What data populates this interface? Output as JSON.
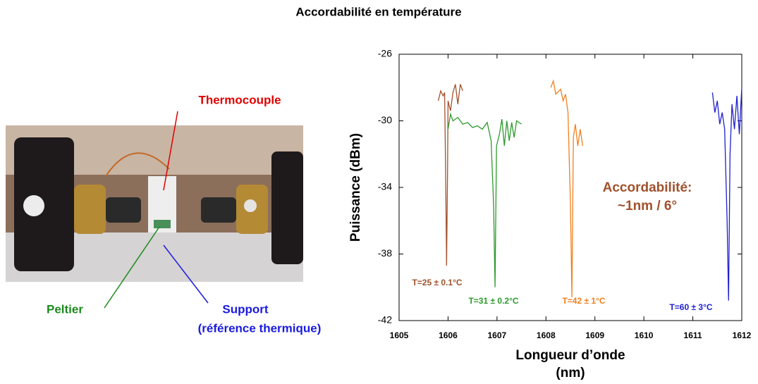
{
  "chart_data": {
    "type": "line",
    "title": "Accordabilité en température",
    "xlabel": [
      "Longueur d’onde",
      "(nm)"
    ],
    "ylabel": "Puissance (dBm)",
    "xlim": [
      1605,
      1612
    ],
    "xticks": [
      1605,
      1606,
      1607,
      1608,
      1609,
      1610,
      1611,
      1612
    ],
    "ylim": [
      -42,
      -26
    ],
    "yticks": [
      -42,
      -38,
      -34,
      -30,
      -26
    ],
    "grid": false,
    "annotation": [
      "Accordabilité:",
      "~1nm / 6°"
    ],
    "annotation_color": "#a0522d",
    "series": [
      {
        "name": "T=25 ± 0.1°C",
        "color": "#a0522d",
        "x": [
          1605.8,
          1605.85,
          1605.9,
          1605.93,
          1605.95,
          1605.97,
          1605.99,
          1606.0,
          1606.05,
          1606.1,
          1606.15,
          1606.2,
          1606.25,
          1606.3
        ],
        "values": [
          -28.8,
          -28.2,
          -28.5,
          -28.3,
          -33,
          -38.7,
          -33,
          -28.8,
          -29.4,
          -28.3,
          -27.8,
          -29,
          -27.8,
          -28.2
        ]
      },
      {
        "name": "T=31 ± 0.2°C",
        "color": "#2e9a2e",
        "x": [
          1606.0,
          1606.05,
          1606.1,
          1606.2,
          1606.3,
          1606.4,
          1606.5,
          1606.6,
          1606.7,
          1606.8,
          1606.88,
          1606.93,
          1606.96,
          1606.99,
          1607.05,
          1607.1,
          1607.15,
          1607.2,
          1607.25,
          1607.3,
          1607.35,
          1607.4,
          1607.5
        ],
        "values": [
          -30.5,
          -29.6,
          -30,
          -29.8,
          -30.2,
          -30.1,
          -30.4,
          -30.3,
          -30.5,
          -30.1,
          -31.2,
          -35,
          -40,
          -31.5,
          -30.8,
          -29.9,
          -31.5,
          -30,
          -31.2,
          -30.1,
          -31,
          -30,
          -30.2
        ]
      },
      {
        "name": "T=42 ± 1°C",
        "color": "#f08020",
        "x": [
          1608.1,
          1608.15,
          1608.2,
          1608.3,
          1608.35,
          1608.4,
          1608.45,
          1608.5,
          1608.53,
          1608.56,
          1608.6,
          1608.65,
          1608.7,
          1608.75
        ],
        "values": [
          -28,
          -27.6,
          -28.4,
          -28.1,
          -28.8,
          -28.4,
          -29.5,
          -35,
          -40.6,
          -31,
          -30.2,
          -31.5,
          -30.5,
          -31.5
        ]
      },
      {
        "name": "T=60 ± 3°C",
        "color": "#2020d0",
        "x": [
          1611.4,
          1611.45,
          1611.5,
          1611.55,
          1611.6,
          1611.65,
          1611.7,
          1611.73,
          1611.76,
          1611.8,
          1611.85,
          1611.9,
          1611.95,
          1612
        ],
        "values": [
          -28.3,
          -29.5,
          -28.8,
          -30.2,
          -29.5,
          -30.5,
          -36,
          -40.8,
          -32,
          -29,
          -30.5,
          -28.5,
          -30.8,
          -28
        ]
      }
    ]
  },
  "photo": {
    "labels": [
      "Thermocouple",
      "Peltier",
      "Support",
      "(référence thermique)"
    ]
  }
}
